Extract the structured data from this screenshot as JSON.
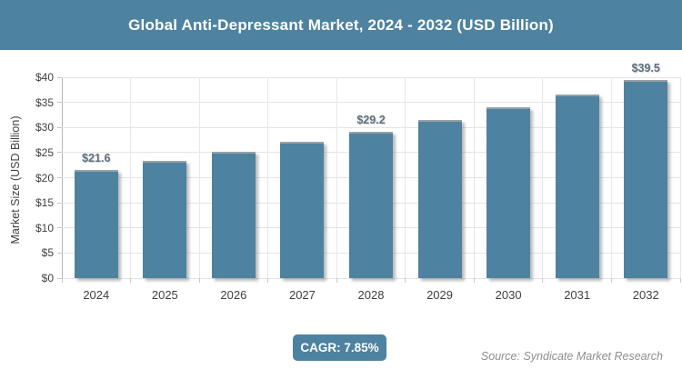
{
  "header": {
    "title": "Global Anti-Depressant Market, 2024 - 2032 (USD Billion)"
  },
  "chart_data": {
    "type": "bar",
    "title": "Global Anti-Depressant Market, 2024 - 2032 (USD Billion)",
    "categories": [
      "2024",
      "2025",
      "2026",
      "2027",
      "2028",
      "2029",
      "2030",
      "2031",
      "2032"
    ],
    "values": [
      21.6,
      23.3,
      25.1,
      27.1,
      29.2,
      31.5,
      34.0,
      36.6,
      39.5
    ],
    "data_labels": [
      "$21.6",
      null,
      null,
      null,
      "$29.2",
      null,
      null,
      null,
      "$39.5"
    ],
    "xlabel": "",
    "ylabel": "Market Size (USD Billion)",
    "ylim": [
      0,
      40
    ],
    "ytick_step": 5,
    "ytick_labels": [
      "$0",
      "$5",
      "$10",
      "$15",
      "$20",
      "$25",
      "$30",
      "$35",
      "$40"
    ],
    "grid": true,
    "legend": "none",
    "bar_color": "#4d82a0"
  },
  "footer": {
    "cagr_label": "CAGR: 7.85%",
    "source": "Source: Syndicate Market Research"
  },
  "colors": {
    "accent": "#4d82a0",
    "data_label": "#5e7080",
    "axis_text": "#3f3f3f",
    "gridline": "#e4e4e4",
    "source_text": "#8e8e8e"
  }
}
